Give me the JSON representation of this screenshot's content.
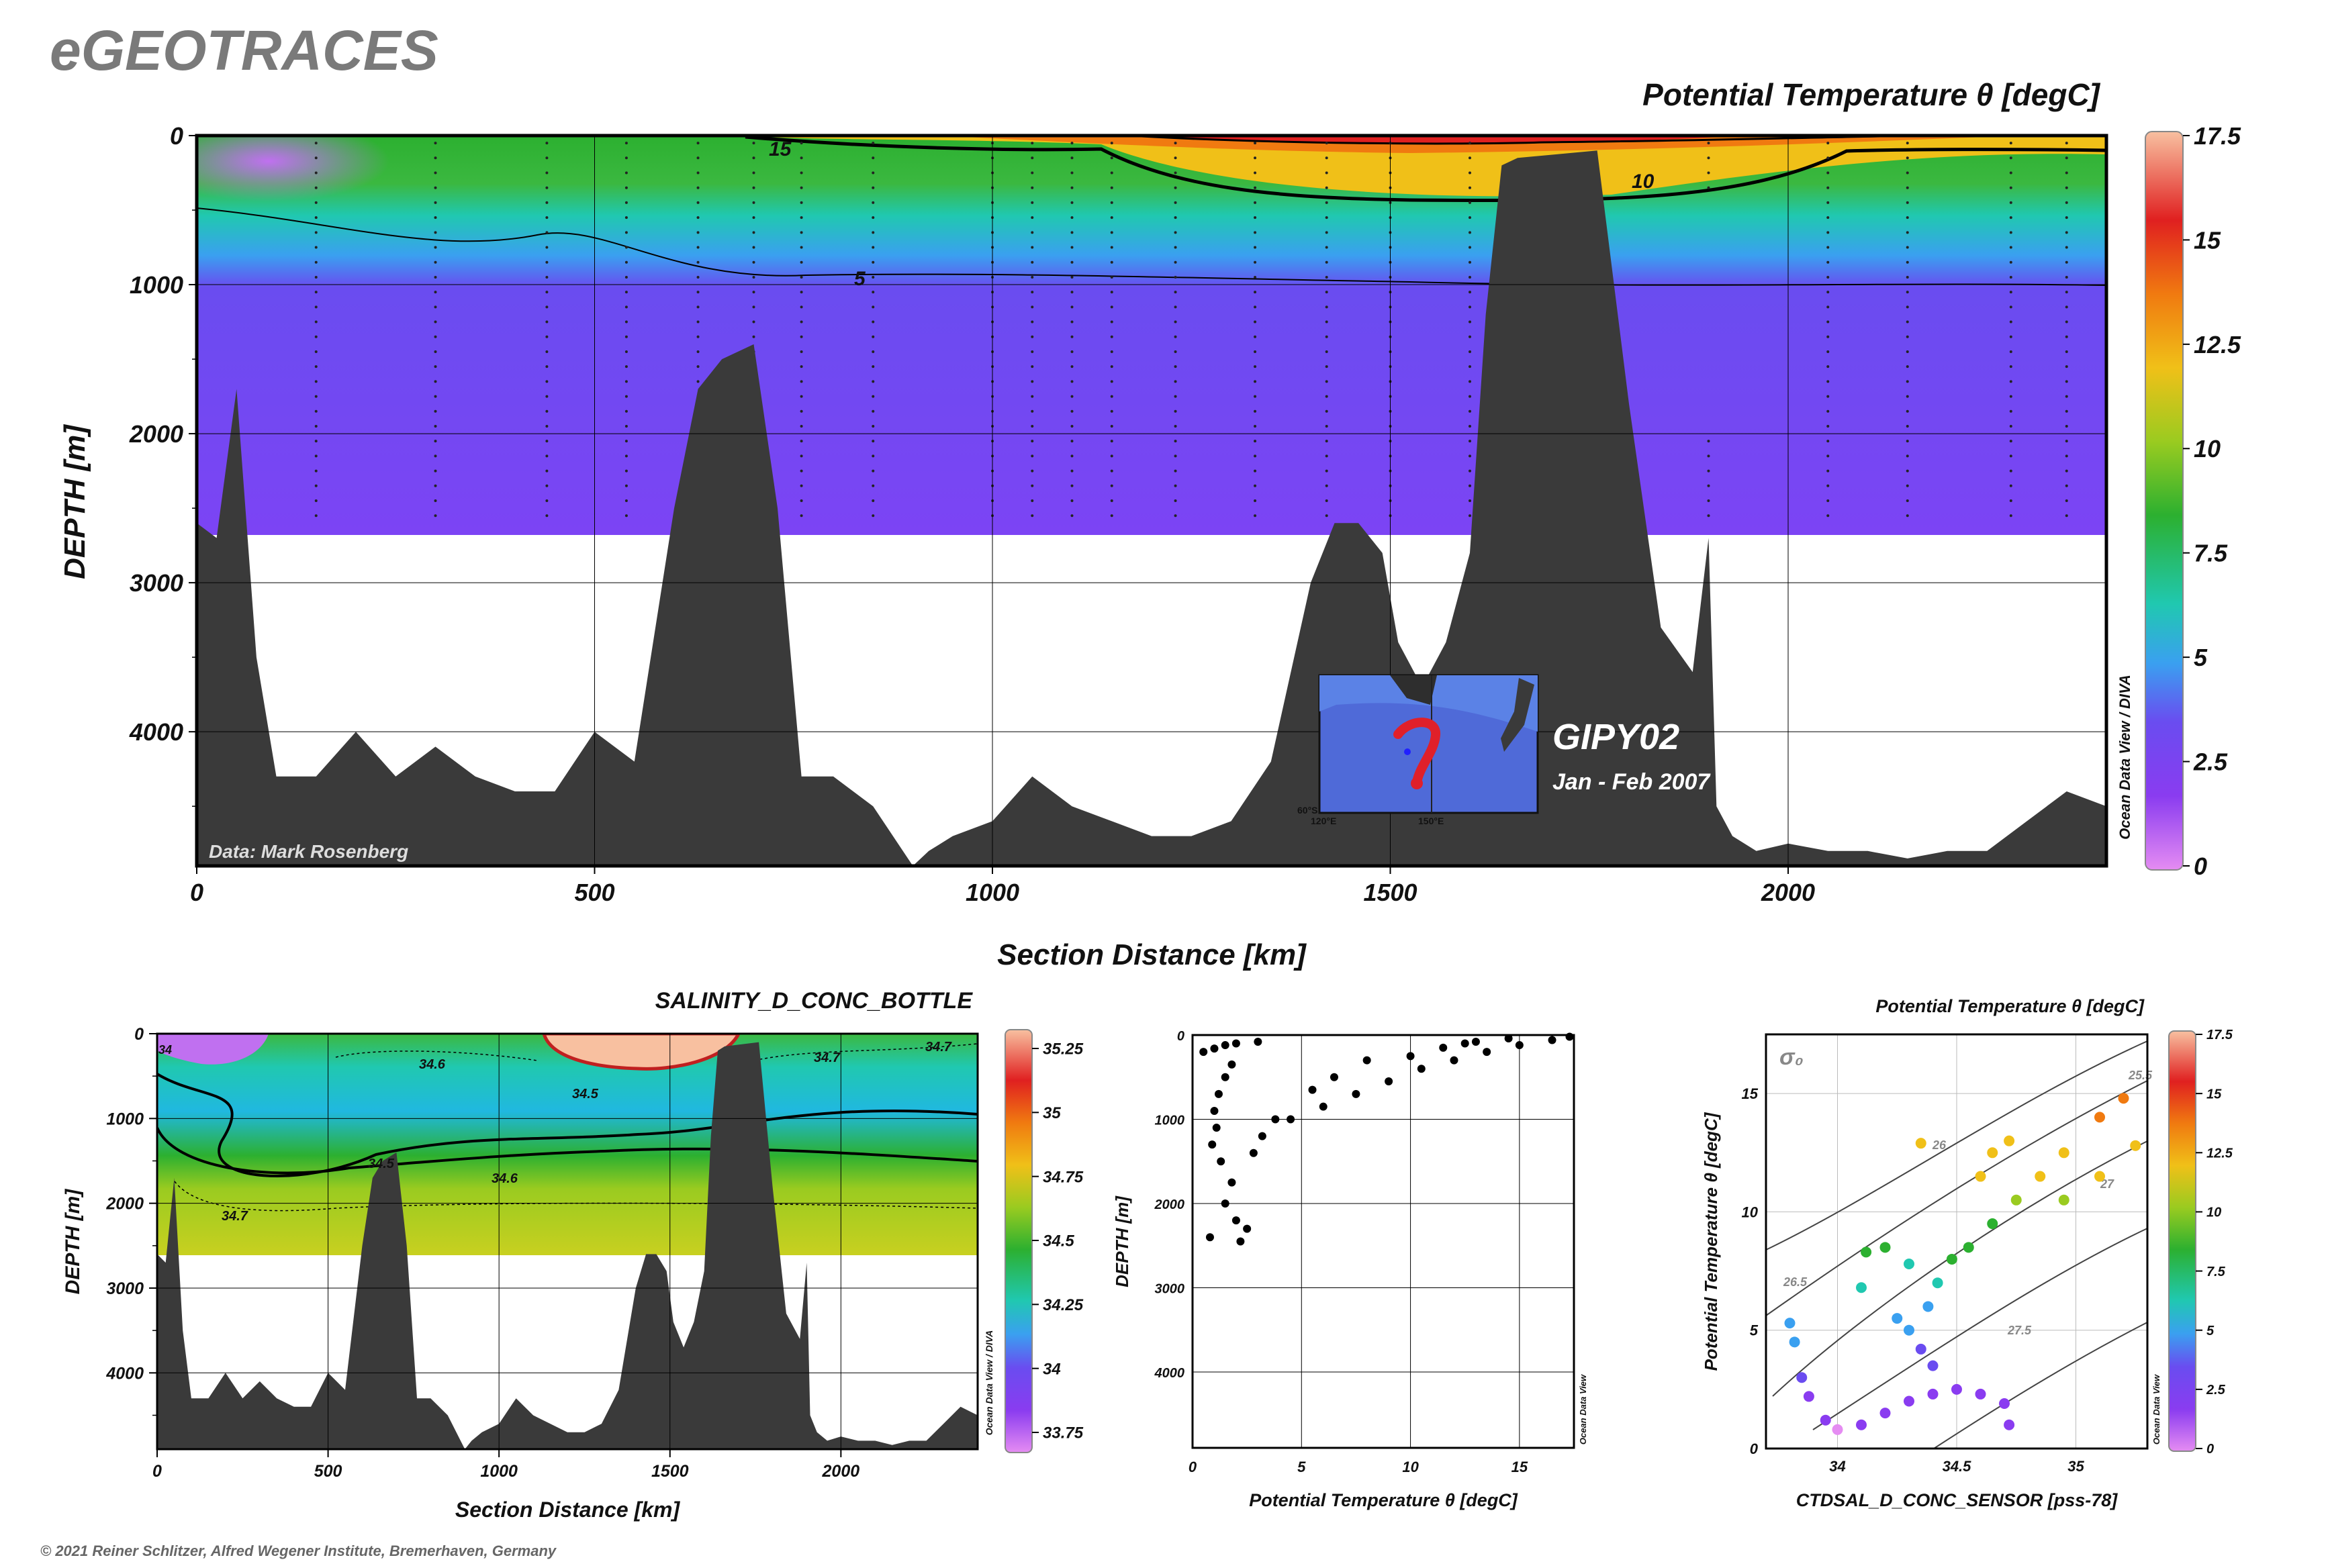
{
  "app_title": "eGEOTRACES",
  "copyright": "© 2021 Reiner Schlitzer, Alfred Wegener Institute, Bremerhaven, Germany",
  "colors": {
    "ocean_colormap": [
      "#e58cf2",
      "#8a3cf0",
      "#6a4cf0",
      "#3aa0f0",
      "#20c8b0",
      "#2cb030",
      "#9acb20",
      "#f0c018",
      "#f07a10",
      "#e02020",
      "#f8c0a0"
    ],
    "bathymetry": "#3a3a3a",
    "isoline": "#000000"
  },
  "main_section": {
    "title": "Potential Temperature θ [degC]",
    "ylabel": "DEPTH [m]",
    "xlabel": "Section Distance [km]",
    "data_credit": "Data: Mark Rosenberg",
    "x_ticks": [
      "0",
      "500",
      "1000",
      "1500",
      "2000"
    ],
    "y_ticks": [
      "0",
      "1000",
      "2000",
      "3000",
      "4000"
    ],
    "colorbar_ticks": [
      "17.5",
      "15",
      "12.5",
      "10",
      "7.5",
      "5",
      "2.5",
      "0"
    ],
    "watermark": "Ocean Data View / DIVA",
    "contour_labels": [
      "15",
      "10",
      "5"
    ],
    "cruise_label": "GIPY02",
    "cruise_dates": "Jan - Feb 2007",
    "inset_labels": [
      "60°S",
      "120°E",
      "150°E"
    ]
  },
  "salinity_section": {
    "title": "SALINITY_D_CONC_BOTTLE",
    "ylabel": "DEPTH [m]",
    "xlabel": "Section Distance [km]",
    "x_ticks": [
      "0",
      "500",
      "1000",
      "1500",
      "2000"
    ],
    "y_ticks": [
      "0",
      "1000",
      "2000",
      "3000",
      "4000"
    ],
    "colorbar_ticks": [
      "35.25",
      "35",
      "34.75",
      "34.5",
      "34.25",
      "34",
      "33.75"
    ],
    "watermark": "Ocean Data View / DIVA",
    "contour_labels": [
      "34",
      "34.6",
      "34.7",
      "34.7",
      "34.5",
      "34.5",
      "34.6",
      "34.7"
    ]
  },
  "chart_data": [
    {
      "type": "heatmap",
      "title": "Potential Temperature θ [degC]",
      "xlabel": "Section Distance [km]",
      "ylabel": "DEPTH [m]",
      "xlim": [
        0,
        2400
      ],
      "ylim": [
        4900,
        0
      ],
      "colorbar_range": [
        0,
        17.5
      ],
      "contour_levels": [
        5,
        10,
        15
      ],
      "data_coverage_max_depth": 2670,
      "bathymetry_km": [
        0,
        25,
        50,
        75,
        100,
        150,
        200,
        250,
        300,
        350,
        400,
        450,
        500,
        550,
        600,
        630,
        660,
        700,
        730,
        760,
        800,
        850,
        900,
        920,
        950,
        1000,
        1050,
        1100,
        1150,
        1200,
        1250,
        1300,
        1350,
        1400,
        1430,
        1460,
        1490,
        1510,
        1540,
        1570,
        1600,
        1620,
        1640,
        1660,
        1700,
        1760,
        1800,
        1840,
        1880,
        1900,
        1910,
        1930,
        1960,
        2000,
        2050,
        2100,
        2150,
        2200,
        2250,
        2300,
        2350,
        2400
      ],
      "bathymetry_depth_m": [
        2600,
        2700,
        1700,
        3500,
        4300,
        4300,
        4000,
        4300,
        4100,
        4300,
        4400,
        4400,
        4000,
        4200,
        2500,
        1700,
        1500,
        1400,
        2500,
        4300,
        4300,
        4500,
        4900,
        4800,
        4700,
        4600,
        4300,
        4500,
        4600,
        4700,
        4700,
        4600,
        4200,
        3000,
        2600,
        2600,
        2800,
        3400,
        3700,
        3400,
        2800,
        1200,
        200,
        150,
        130,
        100,
        1800,
        3300,
        3600,
        2700,
        4500,
        4700,
        4800,
        4750,
        4800,
        4800,
        4850,
        4800,
        4800,
        4600,
        4400,
        4500
      ]
    },
    {
      "type": "heatmap",
      "title": "SALINITY_D_CONC_BOTTLE",
      "xlabel": "Section Distance [km]",
      "ylabel": "DEPTH [m]",
      "xlim": [
        0,
        2400
      ],
      "ylim": [
        4900,
        0
      ],
      "colorbar_range": [
        33.75,
        35.25
      ],
      "contour_levels": [
        34,
        34.5,
        34.6,
        34.7
      ]
    },
    {
      "type": "scatter",
      "xlabel": "Potential Temperature θ [degC]",
      "ylabel": "DEPTH [m]",
      "x_ticks": [
        "0",
        "5",
        "10",
        "15"
      ],
      "y_ticks": [
        "0",
        "1000",
        "2000",
        "3000",
        "4000"
      ],
      "watermark": "Ocean Data View",
      "xlim": [
        0,
        17.5
      ],
      "ylim": [
        4900,
        0
      ],
      "points": [
        [
          0.5,
          200
        ],
        [
          1.0,
          160
        ],
        [
          1.5,
          120
        ],
        [
          2.0,
          100
        ],
        [
          3.0,
          80
        ],
        [
          1.8,
          350
        ],
        [
          1.5,
          500
        ],
        [
          1.2,
          700
        ],
        [
          1.0,
          900
        ],
        [
          1.1,
          1100
        ],
        [
          0.9,
          1300
        ],
        [
          1.3,
          1500
        ],
        [
          1.8,
          1750
        ],
        [
          1.5,
          2000
        ],
        [
          2.0,
          2200
        ],
        [
          0.8,
          2400
        ],
        [
          2.2,
          2450
        ],
        [
          2.5,
          2300
        ],
        [
          2.8,
          1400
        ],
        [
          3.2,
          1200
        ],
        [
          3.8,
          1000
        ],
        [
          4.5,
          1000
        ],
        [
          6.0,
          850
        ],
        [
          7.5,
          700
        ],
        [
          9.0,
          550
        ],
        [
          10.5,
          400
        ],
        [
          12.0,
          300
        ],
        [
          13.5,
          200
        ],
        [
          15.0,
          120
        ],
        [
          16.5,
          60
        ],
        [
          17.3,
          20
        ],
        [
          8.0,
          300
        ],
        [
          10.0,
          250
        ],
        [
          11.5,
          150
        ],
        [
          13.0,
          80
        ],
        [
          14.5,
          40
        ],
        [
          6.5,
          500
        ],
        [
          5.5,
          650
        ],
        [
          12.5,
          100
        ]
      ]
    },
    {
      "type": "scatter",
      "title": "Potential Temperature θ [degC]",
      "xlabel": "CTDSAL_D_CONC_SENSOR [pss-78]",
      "ylabel": "Potential Temperature θ [degC]",
      "x_ticks": [
        "34",
        "34.5",
        "35"
      ],
      "y_ticks": [
        "0",
        "5",
        "10",
        "15"
      ],
      "xlim": [
        33.7,
        35.3
      ],
      "ylim": [
        0,
        17.5
      ],
      "colorbar_ticks": [
        "17.5",
        "15",
        "12.5",
        "10",
        "7.5",
        "5",
        "2.5",
        "0"
      ],
      "watermark": "Ocean Data View",
      "density_label": "σ₀",
      "isopycnal_labels": [
        "25.5",
        "26",
        "26.5",
        "27",
        "27.5"
      ],
      "points": [
        [
          33.8,
          5.3
        ],
        [
          33.82,
          4.5
        ],
        [
          33.85,
          3.0
        ],
        [
          33.88,
          2.2
        ],
        [
          33.95,
          1.2
        ],
        [
          34.0,
          0.8
        ],
        [
          34.1,
          1.0
        ],
        [
          34.2,
          1.5
        ],
        [
          34.3,
          2.0
        ],
        [
          34.4,
          2.3
        ],
        [
          34.5,
          2.5
        ],
        [
          34.6,
          2.3
        ],
        [
          34.7,
          1.9
        ],
        [
          34.72,
          1.0
        ],
        [
          34.3,
          5.0
        ],
        [
          34.35,
          4.2
        ],
        [
          34.4,
          3.5
        ],
        [
          34.38,
          6.0
        ],
        [
          34.42,
          7.0
        ],
        [
          34.48,
          8.0
        ],
        [
          34.55,
          8.5
        ],
        [
          34.65,
          9.5
        ],
        [
          34.75,
          10.5
        ],
        [
          34.85,
          11.5
        ],
        [
          34.95,
          12.5
        ],
        [
          35.1,
          14.0
        ],
        [
          35.2,
          14.8
        ],
        [
          34.1,
          6.8
        ],
        [
          34.12,
          8.3
        ],
        [
          34.2,
          8.5
        ],
        [
          34.3,
          7.8
        ],
        [
          34.6,
          11.5
        ],
        [
          34.65,
          12.5
        ],
        [
          34.72,
          13.0
        ],
        [
          34.95,
          10.5
        ],
        [
          35.1,
          11.5
        ],
        [
          35.25,
          12.8
        ],
        [
          34.35,
          12.9
        ],
        [
          34.25,
          5.5
        ]
      ]
    }
  ]
}
